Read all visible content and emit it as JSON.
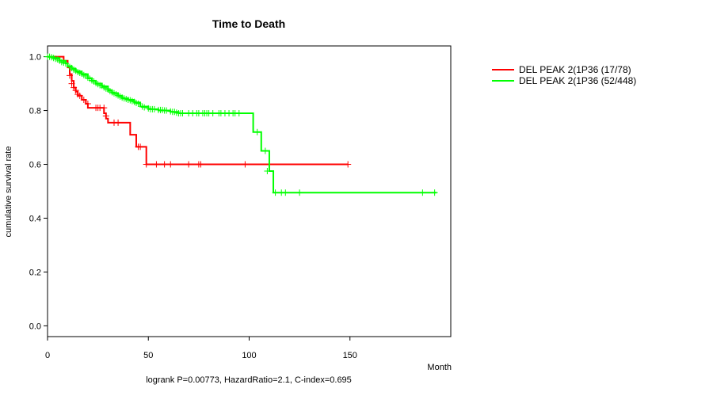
{
  "chart_data": {
    "type": "line",
    "title": "Time to Death",
    "xlabel": "Month",
    "ylabel": "cumulative survival rate",
    "footnote": "logrank P=0.00773, HazardRatio=2.1, C-index=0.695",
    "xlim": [
      0,
      200
    ],
    "ylim": [
      -0.04,
      1.04
    ],
    "xticks": [
      0,
      50,
      100,
      150
    ],
    "yticks": [
      0.0,
      0.2,
      0.4,
      0.6,
      0.8,
      1.0
    ],
    "ytick_labels": [
      "0.0",
      "0.2",
      "0.4",
      "0.6",
      "0.8",
      "1.0"
    ],
    "legend_position": "top-right, outside plot",
    "series": [
      {
        "name": "DEL PEAK  2(1P36 (17/78)",
        "color": "#ff0000",
        "steps": [
          [
            0,
            1.0
          ],
          [
            8,
            0.985
          ],
          [
            10,
            0.96
          ],
          [
            11,
            0.935
          ],
          [
            12,
            0.91
          ],
          [
            13,
            0.885
          ],
          [
            14,
            0.87
          ],
          [
            15,
            0.855
          ],
          [
            17,
            0.84
          ],
          [
            19,
            0.825
          ],
          [
            20,
            0.81
          ],
          [
            28,
            0.79
          ],
          [
            29,
            0.77
          ],
          [
            30,
            0.755
          ],
          [
            41,
            0.71
          ],
          [
            44,
            0.665
          ],
          [
            49,
            0.6
          ],
          [
            149,
            0.6
          ]
        ],
        "censor": [
          [
            8,
            0.985
          ],
          [
            11,
            0.93
          ],
          [
            12,
            0.9
          ],
          [
            13,
            0.885
          ],
          [
            14,
            0.875
          ],
          [
            15,
            0.86
          ],
          [
            16,
            0.855
          ],
          [
            18,
            0.84
          ],
          [
            20,
            0.825
          ],
          [
            24,
            0.81
          ],
          [
            25,
            0.81
          ],
          [
            26,
            0.81
          ],
          [
            28,
            0.81
          ],
          [
            29,
            0.78
          ],
          [
            33,
            0.755
          ],
          [
            35,
            0.755
          ],
          [
            45,
            0.665
          ],
          [
            46,
            0.665
          ],
          [
            49,
            0.6
          ],
          [
            54,
            0.6
          ],
          [
            58,
            0.6
          ],
          [
            61,
            0.6
          ],
          [
            70,
            0.6
          ],
          [
            75,
            0.6
          ],
          [
            76,
            0.6
          ],
          [
            98,
            0.6
          ],
          [
            149,
            0.6
          ]
        ]
      },
      {
        "name": "DEL PEAK  2(1P36 (52/448)",
        "color": "#00ff00",
        "steps": [
          [
            0,
            1.0
          ],
          [
            3,
            0.995
          ],
          [
            6,
            0.985
          ],
          [
            9,
            0.975
          ],
          [
            10,
            0.965
          ],
          [
            12,
            0.955
          ],
          [
            14,
            0.945
          ],
          [
            17,
            0.935
          ],
          [
            20,
            0.92
          ],
          [
            22,
            0.91
          ],
          [
            24,
            0.9
          ],
          [
            27,
            0.89
          ],
          [
            30,
            0.875
          ],
          [
            32,
            0.865
          ],
          [
            35,
            0.855
          ],
          [
            37,
            0.845
          ],
          [
            40,
            0.84
          ],
          [
            43,
            0.83
          ],
          [
            46,
            0.815
          ],
          [
            50,
            0.805
          ],
          [
            55,
            0.8
          ],
          [
            61,
            0.795
          ],
          [
            65,
            0.79
          ],
          [
            102,
            0.72
          ],
          [
            106,
            0.65
          ],
          [
            110,
            0.575
          ],
          [
            112,
            0.495
          ],
          [
            193,
            0.495
          ]
        ],
        "censor": [
          [
            0,
            1.0
          ],
          [
            1,
            1.0
          ],
          [
            2,
            0.998
          ],
          [
            3,
            0.995
          ],
          [
            4,
            0.992
          ],
          [
            5,
            0.99
          ],
          [
            6,
            0.985
          ],
          [
            7,
            0.98
          ],
          [
            8,
            0.978
          ],
          [
            9,
            0.975
          ],
          [
            11,
            0.962
          ],
          [
            12,
            0.958
          ],
          [
            13,
            0.952
          ],
          [
            14,
            0.948
          ],
          [
            15,
            0.943
          ],
          [
            16,
            0.94
          ],
          [
            17,
            0.937
          ],
          [
            18,
            0.932
          ],
          [
            19,
            0.928
          ],
          [
            20,
            0.922
          ],
          [
            21,
            0.918
          ],
          [
            22,
            0.912
          ],
          [
            23,
            0.908
          ],
          [
            24,
            0.902
          ],
          [
            25,
            0.898
          ],
          [
            26,
            0.894
          ],
          [
            27,
            0.892
          ],
          [
            28,
            0.886
          ],
          [
            29,
            0.882
          ],
          [
            30,
            0.878
          ],
          [
            31,
            0.872
          ],
          [
            32,
            0.868
          ],
          [
            33,
            0.864
          ],
          [
            34,
            0.86
          ],
          [
            35,
            0.856
          ],
          [
            36,
            0.852
          ],
          [
            37,
            0.848
          ],
          [
            38,
            0.845
          ],
          [
            39,
            0.843
          ],
          [
            40,
            0.84
          ],
          [
            41,
            0.838
          ],
          [
            42,
            0.835
          ],
          [
            43,
            0.832
          ],
          [
            44,
            0.828
          ],
          [
            45,
            0.825
          ],
          [
            47,
            0.815
          ],
          [
            48,
            0.812
          ],
          [
            50,
            0.808
          ],
          [
            51,
            0.805
          ],
          [
            52,
            0.805
          ],
          [
            53,
            0.805
          ],
          [
            55,
            0.802
          ],
          [
            56,
            0.802
          ],
          [
            57,
            0.802
          ],
          [
            58,
            0.8
          ],
          [
            59,
            0.8
          ],
          [
            61,
            0.797
          ],
          [
            62,
            0.795
          ],
          [
            63,
            0.795
          ],
          [
            64,
            0.792
          ],
          [
            65,
            0.79
          ],
          [
            66,
            0.79
          ],
          [
            67,
            0.79
          ],
          [
            70,
            0.79
          ],
          [
            72,
            0.79
          ],
          [
            74,
            0.79
          ],
          [
            75,
            0.79
          ],
          [
            77,
            0.79
          ],
          [
            78,
            0.79
          ],
          [
            79,
            0.79
          ],
          [
            80,
            0.79
          ],
          [
            82,
            0.79
          ],
          [
            85,
            0.79
          ],
          [
            86,
            0.79
          ],
          [
            88,
            0.79
          ],
          [
            90,
            0.79
          ],
          [
            92,
            0.79
          ],
          [
            93,
            0.79
          ],
          [
            95,
            0.79
          ],
          [
            104,
            0.72
          ],
          [
            108,
            0.65
          ],
          [
            109,
            0.575
          ],
          [
            113,
            0.495
          ],
          [
            116,
            0.495
          ],
          [
            118,
            0.495
          ],
          [
            125,
            0.495
          ],
          [
            186,
            0.495
          ],
          [
            192,
            0.495
          ]
        ]
      }
    ]
  }
}
